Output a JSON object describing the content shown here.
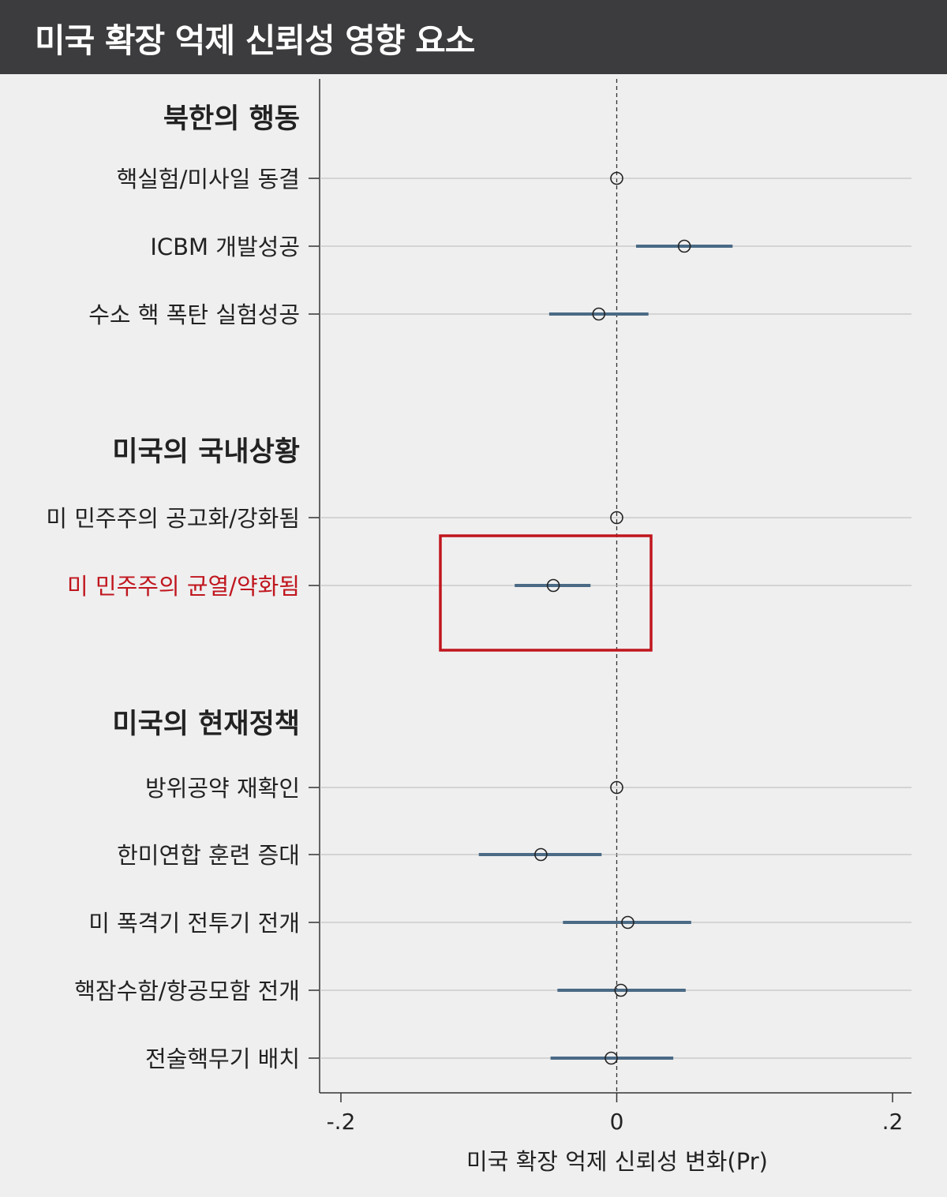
{
  "header": {
    "title": "미국 확장 억제 신뢰성 영향 요소"
  },
  "colors": {
    "title_bar": "#3c3c3e",
    "background": "#efefef",
    "ci_line": "#4a6a85",
    "highlight": "#c0161e",
    "gridline": "#b8b8b8",
    "text": "#222222"
  },
  "chart_data": {
    "type": "coefficient-plot",
    "title": "미국 확장 억제 신뢰성 영향 요소",
    "xlabel": "미국 확장 억제 신뢰성 변화(Pr)",
    "xlim": [
      -0.2,
      0.2
    ],
    "xticks": [
      -0.2,
      0,
      0.2
    ],
    "xtick_labels": [
      "-.2",
      "0",
      ".2"
    ],
    "reference_line": 0,
    "groups": [
      {
        "heading": "북한의 행동",
        "items": [
          {
            "label": "핵실험/미사일 동결",
            "estimate": 0.0,
            "ci": null,
            "highlight": false
          },
          {
            "label": "ICBM 개발성공",
            "estimate": 0.049,
            "ci": [
              0.014,
              0.084
            ],
            "highlight": false
          },
          {
            "label": "수소 핵 폭탄 실험성공",
            "estimate": -0.013,
            "ci": [
              -0.049,
              0.023
            ],
            "highlight": false
          }
        ]
      },
      {
        "heading": "미국의 국내상황",
        "items": [
          {
            "label": "미 민주주의 공고화/강화됨",
            "estimate": 0.0,
            "ci": null,
            "highlight": false
          },
          {
            "label": "미 민주주의 균열/약화됨",
            "estimate": -0.046,
            "ci": [
              -0.074,
              -0.019
            ],
            "highlight": true
          }
        ]
      },
      {
        "heading": "미국의 현재정책",
        "items": [
          {
            "label": "방위공약 재확인",
            "estimate": 0.0,
            "ci": null,
            "highlight": false
          },
          {
            "label": "한미연합 훈련 증대",
            "estimate": -0.055,
            "ci": [
              -0.1,
              -0.011
            ],
            "highlight": false
          },
          {
            "label": "미 폭격기 전투기 전개",
            "estimate": 0.008,
            "ci": [
              -0.039,
              0.054
            ],
            "highlight": false
          },
          {
            "label": "핵잠수함/항공모함 전개",
            "estimate": 0.003,
            "ci": [
              -0.043,
              0.05
            ],
            "highlight": false
          },
          {
            "label": "전술핵무기 배치",
            "estimate": -0.004,
            "ci": [
              -0.048,
              0.041
            ],
            "highlight": false
          }
        ]
      }
    ],
    "grid": true
  }
}
